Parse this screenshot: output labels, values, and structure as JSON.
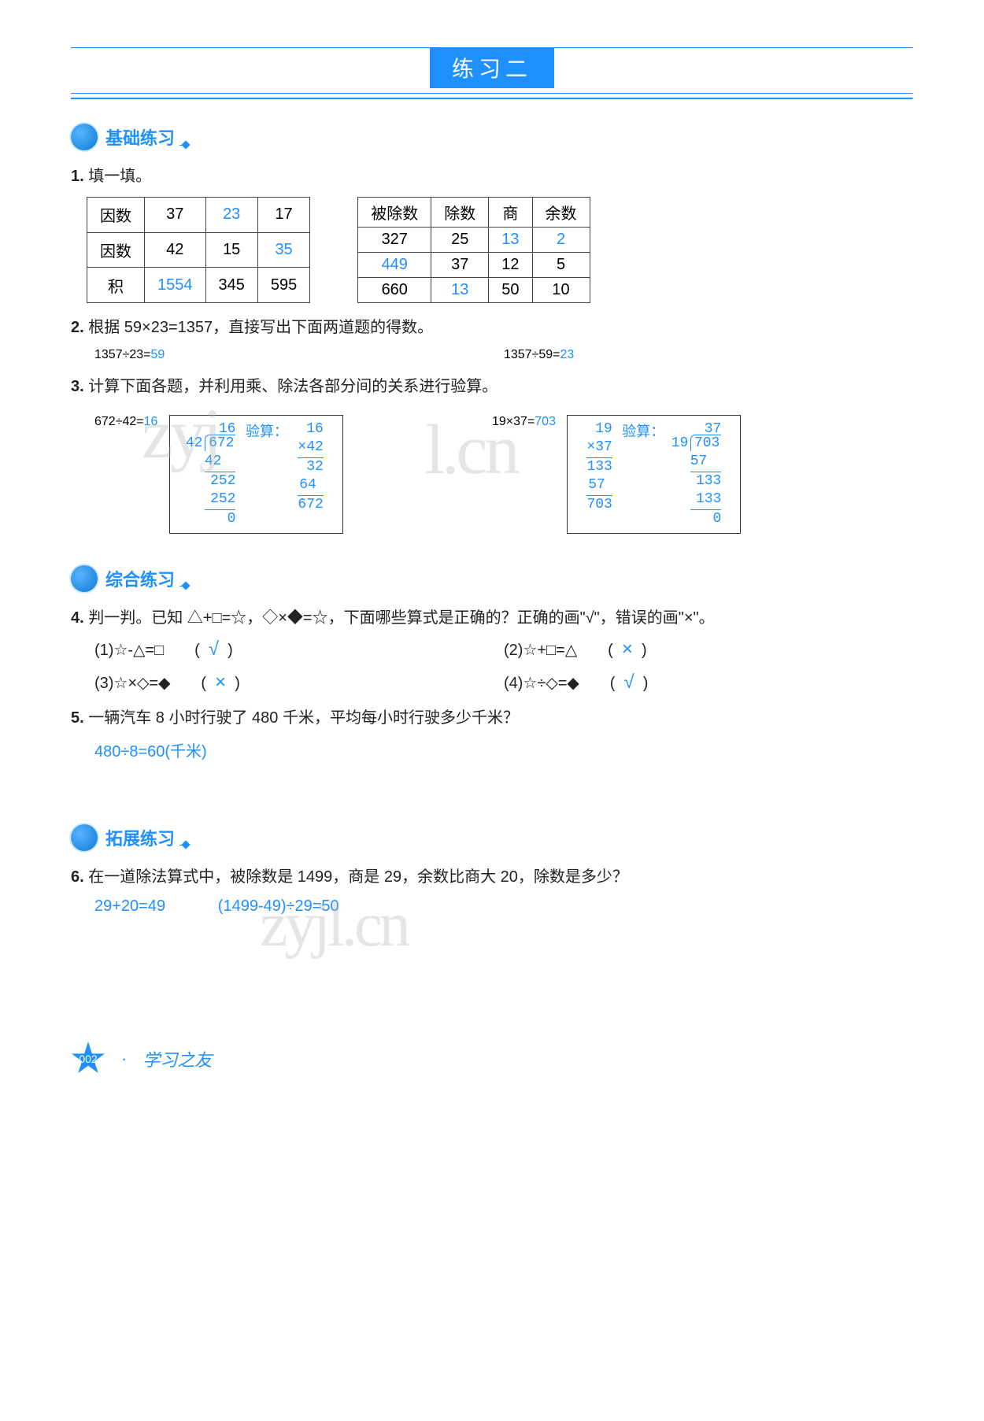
{
  "page_title": "练习二",
  "sections": {
    "basic": "基础练习",
    "comprehensive": "综合练习",
    "extension": "拓展练习"
  },
  "q1": {
    "number": "1.",
    "text": "填一填。",
    "table1": {
      "row_labels": [
        "因数",
        "因数",
        "积"
      ],
      "cells": [
        [
          "37",
          "23",
          "17"
        ],
        [
          "42",
          "15",
          "35"
        ],
        [
          "1554",
          "345",
          "595"
        ]
      ],
      "blue_cells": [
        [
          0,
          1
        ],
        [
          1,
          2
        ],
        [
          2,
          0
        ]
      ]
    },
    "table2": {
      "headers": [
        "被除数",
        "除数",
        "商",
        "余数"
      ],
      "rows": [
        [
          "327",
          "25",
          "13",
          "2"
        ],
        [
          "449",
          "37",
          "12",
          "5"
        ],
        [
          "660",
          "13",
          "50",
          "10"
        ]
      ],
      "blue_cells": [
        [
          0,
          2
        ],
        [
          0,
          3
        ],
        [
          1,
          0
        ],
        [
          2,
          1
        ]
      ]
    }
  },
  "q2": {
    "number": "2.",
    "text": "根据 59×23=1357，直接写出下面两道题的得数。",
    "eq1_label": "1357÷23=",
    "eq1_ans": "59",
    "eq2_label": "1357÷59=",
    "eq2_ans": "23"
  },
  "q3": {
    "number": "3.",
    "text": "计算下面各题，并利用乘、除法各部分间的关系进行验算。",
    "p1_label": "672÷42=",
    "p1_ans": "16",
    "p1_check_label": "验算：",
    "p1_div": {
      "quotient": "16",
      "divisor": "42",
      "dividend": "672",
      "s1": "42",
      "s2": "252",
      "s3": "252",
      "s4": "0"
    },
    "p1_mult": {
      "a": "16",
      "b": "×42",
      "p1": "32",
      "p2": "64",
      "res": "672"
    },
    "p2_label": "19×37=",
    "p2_ans": "703",
    "p2_check_label": "验算：",
    "p2_mult": {
      "a": "19",
      "b": "×37",
      "p1": "133",
      "p2": "57",
      "res": "703"
    },
    "p2_div": {
      "quotient": "37",
      "divisor": "19",
      "dividend": "703",
      "s1": "57",
      "s2": "133",
      "s3": "133",
      "s4": "0"
    }
  },
  "q4": {
    "number": "4.",
    "text": "判一判。已知 △+□=☆，◇×◆=☆，下面哪些算式是正确的？正确的画\"√\"，错误的画\"×\"。",
    "items": [
      {
        "label": "(1)☆-△=□",
        "mark": "√"
      },
      {
        "label": "(2)☆+□=△",
        "mark": "×"
      },
      {
        "label": "(3)☆×◇=◆",
        "mark": "×"
      },
      {
        "label": "(4)☆÷◇=◆",
        "mark": "√"
      }
    ]
  },
  "q5": {
    "number": "5.",
    "text": "一辆汽车 8 小时行驶了 480 千米，平均每小时行驶多少千米？",
    "answer": "480÷8=60(千米)"
  },
  "q6": {
    "number": "6.",
    "text": "在一道除法算式中，被除数是 1499，商是 29，余数比商大 20，除数是多少？",
    "ans1": "29+20=49",
    "ans2": "(1499-49)÷29=50"
  },
  "footer": {
    "page_num": "002",
    "brand": "学习之友"
  },
  "watermark": "zyjl.cn"
}
